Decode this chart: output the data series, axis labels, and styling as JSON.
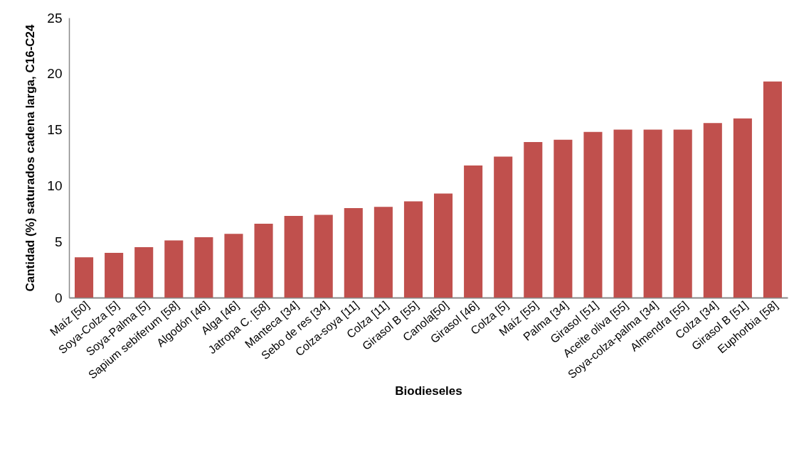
{
  "chart_data": {
    "type": "bar",
    "xlabel": "Biodieseles",
    "ylabel": "Cantidad (%) saturados cadena larga, C16-C24",
    "categories": [
      "Maíz [50]",
      "Soya-Colza [5]",
      "Soya-Palma [5]",
      "Sapium sebiferum [58]",
      "Algodón [46]",
      "Alga [46]",
      "Jatropa C. [58]",
      "Manteca [34]",
      "Sebo de res [34]",
      "Colza-soya [11]",
      "Colza [11]",
      "Girasol B [55]",
      "Canola[50]",
      "Girasol [46]",
      "Colza [5]",
      "Maíz [55]",
      "Palma [34]",
      "Girasol [51]",
      "Aceite oliva [55]",
      "Soya-colza-palma [34]",
      "Almendra [55]",
      "Colza [34]",
      "Girasol B [51]",
      "Euphorbia [58]"
    ],
    "values": [
      3.6,
      4.0,
      4.5,
      5.1,
      5.4,
      5.7,
      6.6,
      7.3,
      7.4,
      8.0,
      8.1,
      8.6,
      9.3,
      11.8,
      12.6,
      13.9,
      14.1,
      14.8,
      15.0,
      15.0,
      15.0,
      15.6,
      16.0,
      19.3
    ],
    "color": "#c0504d",
    "ylim": [
      0,
      25
    ],
    "yticks": [
      0,
      5,
      10,
      15,
      20,
      25
    ],
    "grid": false
  }
}
